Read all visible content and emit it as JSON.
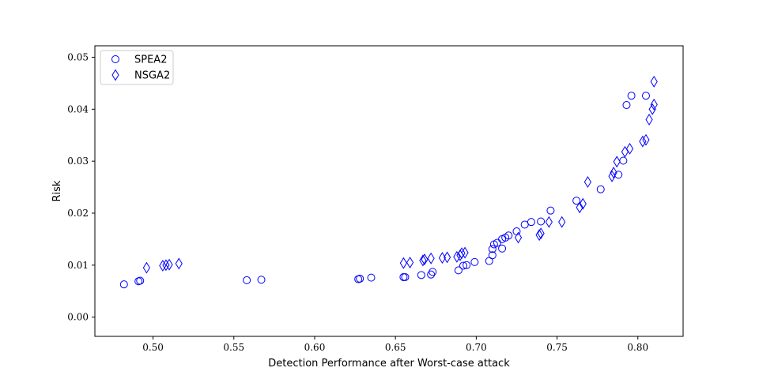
{
  "chart_data": {
    "type": "scatter",
    "xlabel": "Detection Performance after Worst-case attack",
    "ylabel": "Risk",
    "xlim": [
      0.464,
      0.828
    ],
    "ylim": [
      -0.0037,
      0.0522
    ],
    "xticks": [
      0.5,
      0.55,
      0.6,
      0.65,
      0.7,
      0.75,
      0.8
    ],
    "xtick_labels": [
      "0.50",
      "0.55",
      "0.60",
      "0.65",
      "0.70",
      "0.75",
      "0.80"
    ],
    "yticks": [
      0.0,
      0.01,
      0.02,
      0.03,
      0.04,
      0.05
    ],
    "ytick_labels": [
      "0.00",
      "0.01",
      "0.02",
      "0.03",
      "0.04",
      "0.05"
    ],
    "grid": false,
    "legend_position": "top-left",
    "series": [
      {
        "name": "SPEA2",
        "marker": "circle",
        "color": "#0000ff",
        "points": [
          [
            0.482,
            0.0063
          ],
          [
            0.491,
            0.0069
          ],
          [
            0.492,
            0.007
          ],
          [
            0.558,
            0.0071
          ],
          [
            0.567,
            0.0072
          ],
          [
            0.627,
            0.0073
          ],
          [
            0.628,
            0.0074
          ],
          [
            0.635,
            0.0076
          ],
          [
            0.655,
            0.0077
          ],
          [
            0.656,
            0.0077
          ],
          [
            0.666,
            0.0081
          ],
          [
            0.672,
            0.0082
          ],
          [
            0.673,
            0.0087
          ],
          [
            0.689,
            0.009
          ],
          [
            0.692,
            0.0099
          ],
          [
            0.694,
            0.01
          ],
          [
            0.699,
            0.0106
          ],
          [
            0.708,
            0.0108
          ],
          [
            0.71,
            0.0119
          ],
          [
            0.71,
            0.0131
          ],
          [
            0.711,
            0.014
          ],
          [
            0.713,
            0.0143
          ],
          [
            0.716,
            0.0132
          ],
          [
            0.716,
            0.015
          ],
          [
            0.718,
            0.0153
          ],
          [
            0.72,
            0.0157
          ],
          [
            0.725,
            0.0165
          ],
          [
            0.73,
            0.0178
          ],
          [
            0.734,
            0.0183
          ],
          [
            0.74,
            0.0184
          ],
          [
            0.746,
            0.0205
          ],
          [
            0.762,
            0.0224
          ],
          [
            0.777,
            0.0246
          ],
          [
            0.788,
            0.0274
          ],
          [
            0.791,
            0.0301
          ],
          [
            0.793,
            0.0408
          ],
          [
            0.796,
            0.0426
          ],
          [
            0.805,
            0.0426
          ]
        ]
      },
      {
        "name": "NSGA2",
        "marker": "diamond",
        "color": "#0000ff",
        "points": [
          [
            0.496,
            0.0095
          ],
          [
            0.506,
            0.0099
          ],
          [
            0.508,
            0.01
          ],
          [
            0.51,
            0.0101
          ],
          [
            0.516,
            0.0103
          ],
          [
            0.655,
            0.0104
          ],
          [
            0.659,
            0.0105
          ],
          [
            0.667,
            0.0109
          ],
          [
            0.668,
            0.0111
          ],
          [
            0.672,
            0.0113
          ],
          [
            0.679,
            0.0114
          ],
          [
            0.682,
            0.0115
          ],
          [
            0.688,
            0.0116
          ],
          [
            0.69,
            0.0119
          ],
          [
            0.691,
            0.0123
          ],
          [
            0.693,
            0.0124
          ],
          [
            0.726,
            0.0153
          ],
          [
            0.739,
            0.0158
          ],
          [
            0.74,
            0.0161
          ],
          [
            0.745,
            0.0183
          ],
          [
            0.753,
            0.0183
          ],
          [
            0.764,
            0.0211
          ],
          [
            0.766,
            0.0218
          ],
          [
            0.769,
            0.026
          ],
          [
            0.784,
            0.0271
          ],
          [
            0.785,
            0.0278
          ],
          [
            0.787,
            0.0299
          ],
          [
            0.792,
            0.0318
          ],
          [
            0.795,
            0.0324
          ],
          [
            0.803,
            0.0338
          ],
          [
            0.805,
            0.0341
          ],
          [
            0.807,
            0.038
          ],
          [
            0.809,
            0.04
          ],
          [
            0.81,
            0.0409
          ],
          [
            0.81,
            0.0453
          ]
        ]
      }
    ]
  }
}
